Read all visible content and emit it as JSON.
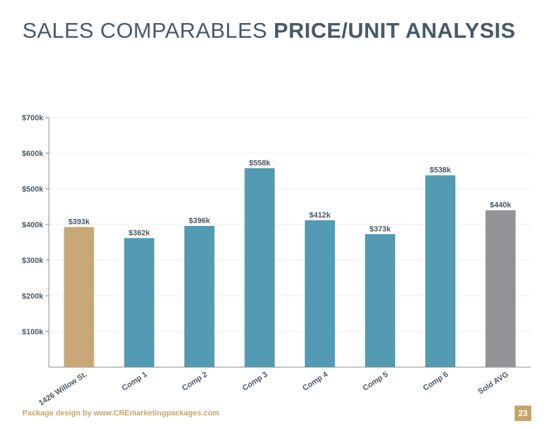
{
  "title": {
    "light": "SALES COMPARABLES ",
    "bold": "PRICE/UNIT ANALYSIS"
  },
  "footer": {
    "credit": "Package design by www.CREmarketingpackages.com",
    "page_number": "23"
  },
  "colors": {
    "subject": "#c8a876",
    "comp": "#529bb3",
    "average": "#929396",
    "text": "#4a5866",
    "accent": "#c8a36b"
  },
  "chart_data": {
    "type": "bar",
    "categories": [
      "1426 Willow St.",
      "Comp 1",
      "Comp 2",
      "Comp 3",
      "Comp 4",
      "Comp 5",
      "Comp 6",
      "Sold AVG"
    ],
    "values": [
      393,
      362,
      396,
      558,
      412,
      373,
      538,
      440
    ],
    "data_labels": [
      "$393k",
      "$362k",
      "$396k",
      "$558k",
      "$412k",
      "$373k",
      "$538k",
      "$440k"
    ],
    "bar_roles": [
      "subject",
      "comp",
      "comp",
      "comp",
      "comp",
      "comp",
      "comp",
      "average"
    ],
    "ylim": [
      0,
      700
    ],
    "yticks": [
      100,
      200,
      300,
      400,
      500,
      600,
      700
    ],
    "ytick_labels": [
      "$100k",
      "$200k",
      "$300k",
      "$400k",
      "$500k",
      "$600k",
      "$700k"
    ],
    "grid": true,
    "legend": "none"
  }
}
